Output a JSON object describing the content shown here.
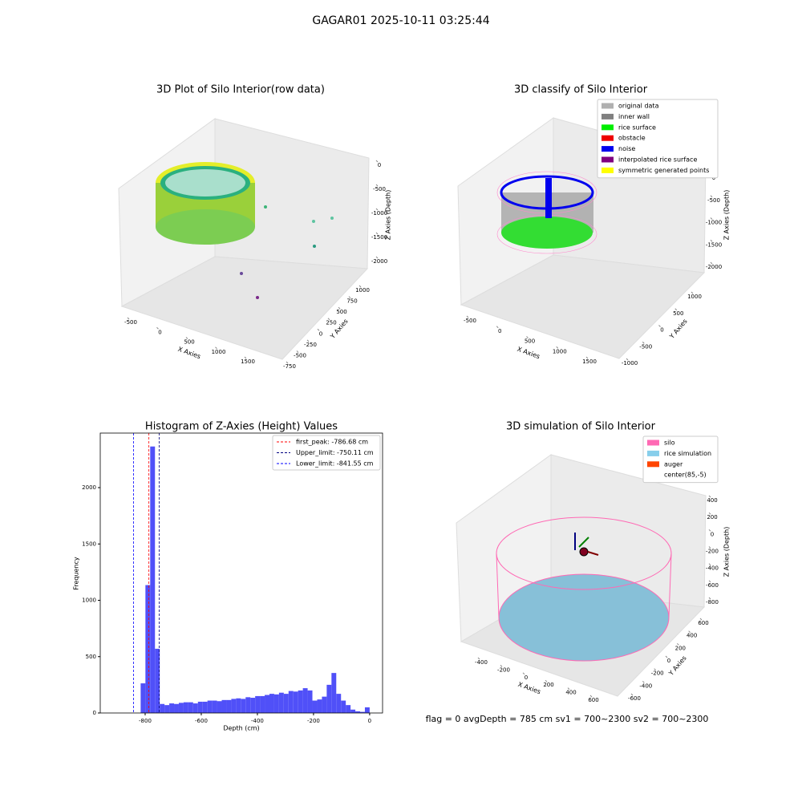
{
  "title": "GAGAR01 2025-10-11 03:25:44",
  "footer": "flag = 0     avgDepth = 785 cm  sv1 = 700~2300  sv2 = 700~2300",
  "chart_data": [
    {
      "type": "scatter3d",
      "title": "3D Plot of Silo Interior(row data)",
      "xlabel": "X Axies",
      "ylabel": "Y Axies",
      "zlabel": "Z Axies (Depth)",
      "xticks": [
        -500,
        0,
        500,
        1000,
        1500
      ],
      "yticks": [
        -750,
        -500,
        -250,
        0,
        250,
        500,
        750,
        1000
      ],
      "zticks": [
        -2000,
        -1500,
        -1000,
        -500,
        0
      ]
    },
    {
      "type": "scatter3d",
      "title": "3D classify of Silo Interior",
      "xlabel": "X Axies",
      "ylabel": "Y Axies",
      "zlabel": "Z Axies (Depth)",
      "xticks": [
        -500,
        0,
        500,
        1000,
        1500
      ],
      "yticks": [
        -1000,
        -500,
        0,
        500,
        1000
      ],
      "zticks": [
        -2000,
        -1500,
        -1000,
        -500,
        0
      ],
      "series": [
        {
          "name": "original data",
          "color": "#b0b0b0"
        },
        {
          "name": "inner wall",
          "color": "#808080"
        },
        {
          "name": "rice surface",
          "color": "#00ee00"
        },
        {
          "name": "obstacle",
          "color": "#ee0000"
        },
        {
          "name": "noise",
          "color": "#0000ee"
        },
        {
          "name": "interpolated rice surface",
          "color": "#800080"
        },
        {
          "name": "symmetric generated points",
          "color": "#ffff00"
        }
      ]
    },
    {
      "type": "histogram",
      "title": "Histogram of Z-Axies (Height) Values",
      "xlabel": "Depth (cm)",
      "ylabel": "Frequency",
      "color": "#5050f8",
      "bins": [
        -816,
        -799,
        -782,
        -765,
        -748,
        -731,
        -714,
        -697,
        -680,
        -663,
        -646,
        -629,
        -612,
        -595,
        -578,
        -561,
        -544,
        -527,
        -510,
        -493,
        -476,
        -459,
        -442,
        -425,
        -408,
        -391,
        -374,
        -357,
        -340,
        -323,
        -306,
        -289,
        -272,
        -255,
        -238,
        -221,
        -204,
        -187,
        -170,
        -153,
        -136,
        -119,
        -102,
        -85,
        -68,
        -51,
        -34,
        -17,
        0
      ],
      "counts": [
        263,
        1135,
        2365,
        570,
        80,
        70,
        85,
        80,
        90,
        95,
        95,
        85,
        100,
        100,
        110,
        110,
        105,
        115,
        115,
        125,
        130,
        125,
        140,
        135,
        150,
        150,
        160,
        170,
        165,
        180,
        170,
        195,
        190,
        200,
        220,
        200,
        110,
        120,
        145,
        250,
        355,
        170,
        110,
        70,
        30,
        15,
        10,
        50
      ],
      "xlim": [
        -960,
        46
      ],
      "ylim": [
        0,
        2484
      ],
      "xticks": [
        -800,
        -600,
        -400,
        -200,
        0
      ],
      "yticks": [
        0,
        500,
        1000,
        1500,
        2000
      ],
      "lines": [
        {
          "name": "first_peak: -786.68 cm",
          "value": -786.68,
          "color": "#ff0000"
        },
        {
          "name": "Upper_limit: -750.11 cm",
          "value": -750.11,
          "color": "#000080"
        },
        {
          "name": "Lower_limit: -841.55 cm",
          "value": -841.55,
          "color": "#0000ff"
        }
      ]
    },
    {
      "type": "scatter3d",
      "title": "3D simulation of Silo Interior",
      "xlabel": "X Axies",
      "ylabel": "Y Axies",
      "zlabel": "Z Axies (Depth)",
      "xticks": [
        -400,
        -200,
        0,
        200,
        400,
        600
      ],
      "yticks": [
        -600,
        -400,
        -200,
        0,
        200,
        400,
        600
      ],
      "zticks": [
        -800,
        -600,
        -400,
        -200,
        0,
        200,
        400
      ],
      "series": [
        {
          "name": "silo",
          "color": "#ff69b4"
        },
        {
          "name": "rice simulation",
          "color": "#87ceeb"
        },
        {
          "name": "auger",
          "color": "#ff4500"
        },
        {
          "name": "center(85,-5)",
          "color": "#ffffff"
        }
      ]
    }
  ]
}
